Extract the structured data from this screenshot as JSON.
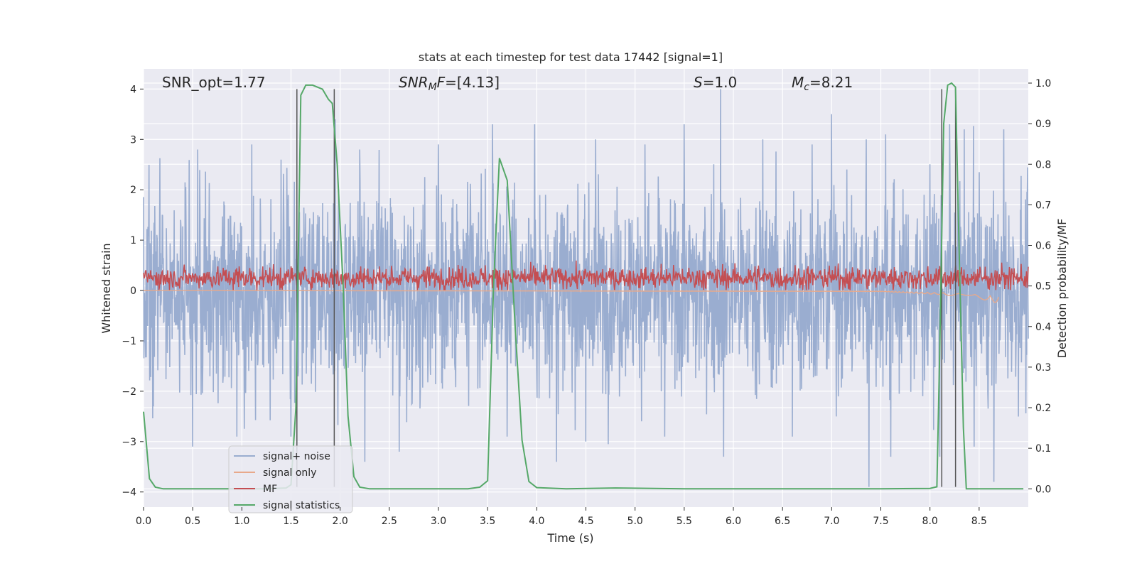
{
  "chart_data": {
    "type": "line",
    "title": "stats at each timestep for test data 17442 [signal=1]",
    "xlabel": "Time (s)",
    "ylabel": "Whitened strain",
    "y2label": "Detection probability/MF",
    "xlim": [
      0,
      9.0
    ],
    "ylim": [
      -4.3,
      4.4
    ],
    "y2lim": [
      -0.045,
      1.035
    ],
    "x_ticks": [
      0.0,
      0.5,
      1.0,
      1.5,
      2.0,
      2.5,
      3.0,
      3.5,
      4.0,
      4.5,
      5.0,
      5.5,
      6.0,
      6.5,
      7.0,
      7.5,
      8.0,
      8.5
    ],
    "x_tick_labels": [
      "0.0",
      "0.5",
      "1.0",
      "1.5",
      "2.0",
      "2.5",
      "3.0",
      "3.5",
      "4.0",
      "4.5",
      "5.0",
      "5.5",
      "6.0",
      "6.5",
      "7.0",
      "7.5",
      "8.0",
      "8.5"
    ],
    "y_ticks": [
      -4,
      -3,
      -2,
      -1,
      0,
      1,
      2,
      3,
      4
    ],
    "y_tick_labels": [
      "−4",
      "−3",
      "−2",
      "−1",
      "0",
      "1",
      "2",
      "3",
      "4"
    ],
    "y2_ticks": [
      0.0,
      0.1,
      0.2,
      0.3,
      0.4,
      0.5,
      0.6,
      0.7,
      0.8,
      0.9,
      1.0
    ],
    "y2_tick_labels": [
      "0.0",
      "0.1",
      "0.2",
      "0.3",
      "0.4",
      "0.5",
      "0.6",
      "0.7",
      "0.8",
      "0.9",
      "1.0"
    ],
    "grid": true,
    "annotations": {
      "snr_opt": "SNR_opt=1.77",
      "snr_mf_base": "SNR",
      "snr_mf_sub": "M",
      "snr_mf_rest": "F=[4.13]",
      "s_italic": "S",
      "s_rest": "=1.0",
      "mc_italic": "M",
      "mc_sub": "c",
      "mc_rest": "=8.21"
    },
    "legend": {
      "placement": "lower-left",
      "entries": [
        "signal+ noise",
        "signal only",
        "MF",
        "signal statistics"
      ]
    },
    "colors": {
      "plot_bg": "#eaeaf2",
      "grid": "#ffffff",
      "signal_noise": "#9aadd0",
      "signal_only": "#e8a98b",
      "mf": "#c44e52",
      "signal_statistics": "#55a868",
      "vlines": "#555555"
    },
    "series": [
      {
        "name": "signal statistics",
        "axis": "right",
        "x": [
          0.0,
          0.06,
          0.12,
          0.2,
          0.4,
          0.8,
          1.2,
          1.45,
          1.5,
          1.55,
          1.6,
          1.65,
          1.72,
          1.82,
          1.88,
          1.92,
          1.97,
          2.03,
          2.08,
          2.14,
          2.2,
          2.3,
          2.6,
          3.0,
          3.3,
          3.42,
          3.5,
          3.56,
          3.62,
          3.7,
          3.78,
          3.85,
          3.92,
          4.0,
          4.3,
          4.8,
          5.5,
          6.5,
          7.5,
          8.0,
          8.07,
          8.1,
          8.14,
          8.18,
          8.22,
          8.26,
          8.3,
          8.34,
          8.37,
          8.5,
          8.95
        ],
        "values": [
          0.19,
          0.025,
          0.004,
          0.0,
          0.0,
          0.0,
          0.0,
          0.002,
          0.01,
          0.2,
          0.97,
          0.995,
          0.995,
          0.985,
          0.96,
          0.95,
          0.8,
          0.5,
          0.18,
          0.03,
          0.004,
          0.0,
          0.0,
          0.0,
          0.0,
          0.004,
          0.02,
          0.5,
          0.815,
          0.76,
          0.4,
          0.12,
          0.018,
          0.003,
          0.0,
          0.002,
          0.0,
          0.0,
          0.0,
          0.001,
          0.005,
          0.35,
          0.9,
          0.995,
          1.0,
          0.99,
          0.55,
          0.15,
          0.0,
          0.0,
          0.0
        ]
      },
      {
        "name": "signal+ noise",
        "axis": "left",
        "description_of_values": "dense noise trace centred on 0, typical amplitude ±1.7, peaks to about ±3",
        "peaks_upper": [
          [
            0.1,
            2.7
          ],
          [
            0.55,
            2.8
          ],
          [
            1.1,
            2.9
          ],
          [
            1.4,
            2.6
          ],
          [
            1.95,
            3.4
          ],
          [
            2.2,
            2.8
          ],
          [
            3.0,
            2.9
          ],
          [
            3.55,
            3.3
          ],
          [
            3.98,
            3.3
          ],
          [
            4.6,
            3.0
          ],
          [
            5.1,
            2.9
          ],
          [
            5.5,
            3.3
          ],
          [
            5.87,
            4.0
          ],
          [
            6.3,
            3.0
          ],
          [
            6.8,
            2.9
          ],
          [
            7.0,
            3.5
          ],
          [
            7.35,
            3.0
          ],
          [
            7.55,
            3.1
          ],
          [
            8.2,
            3.3
          ],
          [
            8.35,
            3.2
          ],
          [
            8.75,
            3.2
          ]
        ],
        "peaks_lower": [
          [
            0.1,
            -2.3
          ],
          [
            0.5,
            -3.1
          ],
          [
            0.95,
            -2.9
          ],
          [
            1.5,
            -2.9
          ],
          [
            2.25,
            -3.4
          ],
          [
            2.6,
            -3.2
          ],
          [
            3.7,
            -2.9
          ],
          [
            4.2,
            -3.4
          ],
          [
            4.5,
            -3.0
          ],
          [
            5.3,
            -2.9
          ],
          [
            5.9,
            -3.3
          ],
          [
            6.6,
            -2.9
          ],
          [
            7.38,
            -3.9
          ],
          [
            7.6,
            -3.3
          ],
          [
            8.1,
            -3.3
          ],
          [
            8.45,
            -3.1
          ],
          [
            8.65,
            -3.8
          ]
        ]
      },
      {
        "name": "signal only",
        "axis": "left",
        "description_of_values": "near zero until ~7.5 s, then grows to about ±0.25 at 8.7 s",
        "x": [
          0.0,
          7.5,
          7.8,
          8.1,
          8.4,
          8.6,
          8.7
        ],
        "envelope": [
          0.0,
          0.02,
          0.05,
          0.08,
          0.14,
          0.2,
          0.26
        ]
      },
      {
        "name": "MF",
        "axis": "right",
        "description_of_values": "noisy trace around 0.52, ranging about 0.49–0.60",
        "mean": 0.52,
        "min": 0.49,
        "max": 0.6
      }
    ],
    "vertical_lines": [
      {
        "x": 1.56,
        "y_top": 4.0,
        "y_bottom": -3.9
      },
      {
        "x": 1.94,
        "y_top": 4.0,
        "y_bottom": -3.9
      },
      {
        "x": 8.12,
        "y_top": 4.0,
        "y_bottom": -3.9
      },
      {
        "x": 8.26,
        "y_top": 4.0,
        "y_bottom": -3.9
      }
    ]
  }
}
